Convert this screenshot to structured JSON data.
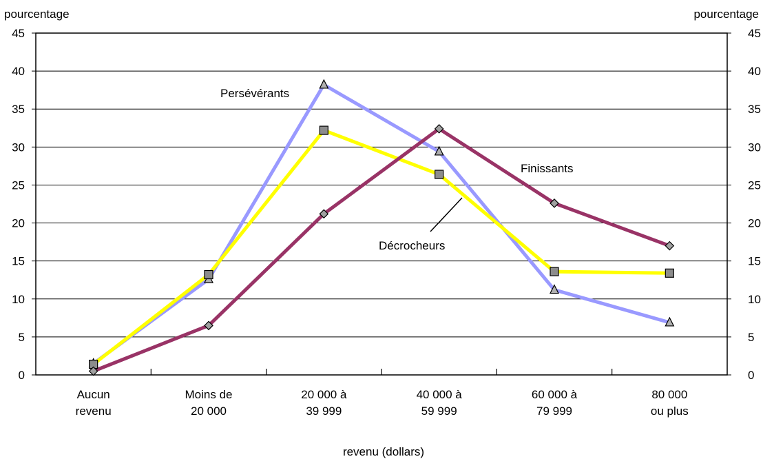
{
  "chart_data": {
    "type": "line",
    "ylabel_left": "pourcentage",
    "ylabel_right": "pourcentage",
    "xlabel": "revenu (dollars)",
    "ylim": [
      0,
      45
    ],
    "yticks": [
      0,
      5,
      10,
      15,
      20,
      25,
      30,
      35,
      40,
      45
    ],
    "grid": true,
    "categories": [
      [
        "Aucun",
        "revenu"
      ],
      [
        "Moins de",
        "20 000"
      ],
      [
        "20 000 à",
        "39 999"
      ],
      [
        "40 000 à",
        "59 999"
      ],
      [
        "60 000 à",
        "79 999"
      ],
      [
        "80 000",
        "ou plus"
      ]
    ],
    "series": [
      {
        "name": "Persévérants",
        "color": "#9999ff",
        "marker": "triangle",
        "values": [
          1.5,
          12.6,
          38.2,
          29.4,
          11.2,
          6.9
        ]
      },
      {
        "name": "Décrocheurs",
        "color": "#ffff00",
        "marker": "square",
        "values": [
          1.4,
          13.2,
          32.2,
          26.4,
          13.6,
          13.4
        ]
      },
      {
        "name": "Finissants",
        "color": "#993366",
        "marker": "diamond",
        "values": [
          0.5,
          6.5,
          21.2,
          32.4,
          22.6,
          17.0
        ]
      }
    ]
  }
}
